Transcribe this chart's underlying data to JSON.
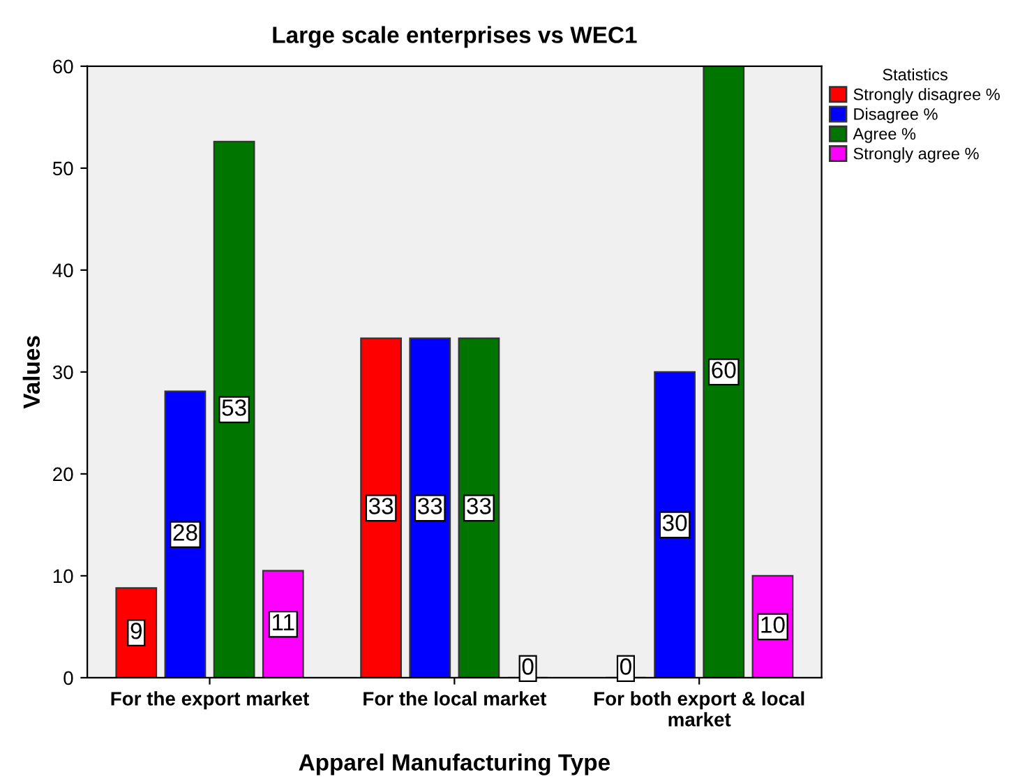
{
  "chart_data": {
    "type": "bar",
    "title": "Large scale enterprises vs WEC1",
    "xlabel": "Apparel Manufacturing Type",
    "ylabel": "Values",
    "legend_title": "Statistics",
    "categories": [
      "For the export market",
      "For the local market",
      "For both export & local\nmarket"
    ],
    "series": [
      {
        "name": "Strongly disagree %",
        "color": "#ff0000",
        "values": [
          8.8,
          33.3,
          0
        ],
        "value_labels": [
          "9",
          "33",
          "0"
        ]
      },
      {
        "name": "Disagree %",
        "color": "#0000ff",
        "values": [
          28.1,
          33.3,
          30
        ],
        "value_labels": [
          "28",
          "33",
          "30"
        ]
      },
      {
        "name": "Agree %",
        "color": "#007500",
        "values": [
          52.6,
          33.3,
          60
        ],
        "value_labels": [
          "53",
          "33",
          "60"
        ]
      },
      {
        "name": "Strongly agree %",
        "color": "#ff00ff",
        "values": [
          10.5,
          0,
          10
        ],
        "value_labels": [
          "11",
          "0",
          "10"
        ]
      }
    ],
    "ylim": [
      0,
      60
    ],
    "yticks": [
      0,
      10,
      20,
      30,
      40,
      50,
      60
    ],
    "grid": false,
    "legend": "top right"
  }
}
